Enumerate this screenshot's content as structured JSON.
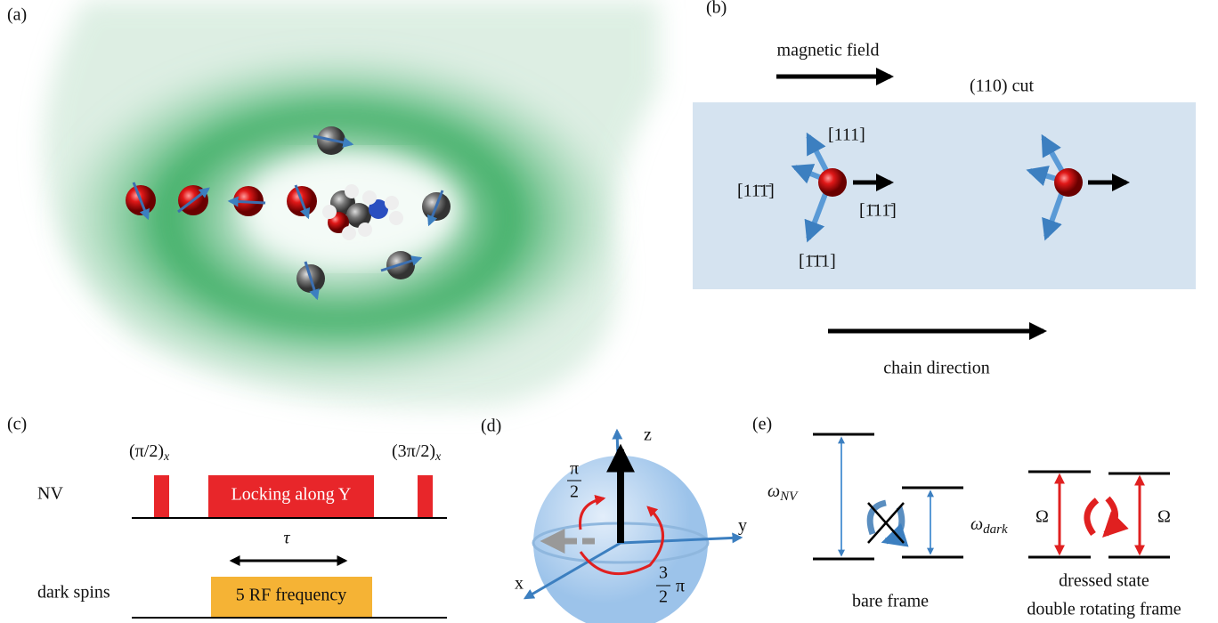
{
  "panels": {
    "a": {
      "label": "(a)"
    },
    "b": {
      "label": "(b)",
      "field_label": "magnetic field",
      "cut_label": "(110) cut",
      "directions": [
        "[111]",
        "[11̄1̄]",
        "[1̄11̄]",
        "[1̄1̄1]"
      ],
      "chain_label": "chain direction"
    },
    "c": {
      "label": "(c)",
      "pulse_1": {
        "base": "(π/2)",
        "sub": "x"
      },
      "pulse_2": {
        "base": "(3π/2)",
        "sub": "x"
      },
      "nv_label": "NV",
      "locking": "Locking along Y",
      "tau": "τ",
      "dark_label": "dark spins",
      "rf": "5 RF frequency"
    },
    "d": {
      "label": "(d)",
      "axes": [
        "z",
        "y",
        "x"
      ],
      "angle_1": {
        "num": "π",
        "den": "2"
      },
      "angle_2": {
        "num": "3",
        "den": "2",
        "suffix": "π"
      }
    },
    "e": {
      "label": "(e)",
      "omega_nv": {
        "base": "ω",
        "sub": "NV"
      },
      "omega_dark": {
        "base": "ω",
        "sub": "dark"
      },
      "rabi": [
        "Ω",
        "Ω"
      ],
      "bare": "bare frame",
      "dressed": [
        "dressed state",
        "double rotating frame"
      ]
    }
  }
}
